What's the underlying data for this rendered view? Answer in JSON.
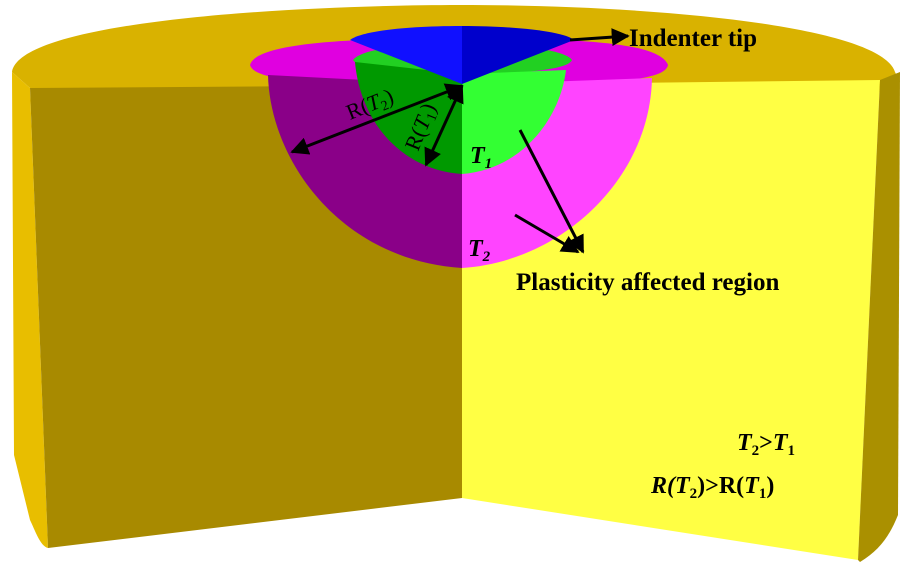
{
  "labels": {
    "indenter_tip": "Indenter tip",
    "plasticity_region": "Plasticity affected region",
    "t1": {
      "main": "T",
      "sub": "1"
    },
    "t2": {
      "main": "T",
      "sub": "2"
    },
    "radius_t2": {
      "prefix": "R(",
      "var": "T",
      "sub": "2",
      "suffix": ")"
    },
    "radius_t1": {
      "prefix": "R(",
      "var": "T",
      "sub": "1",
      "suffix": ")"
    },
    "relation_temperature": {
      "a": "T",
      "a_sub": "2",
      "op": ">",
      "b": "T",
      "b_sub": "1"
    },
    "relation_radius": {
      "a_pre": "R(",
      "a": "T",
      "a_sub": "2",
      "mid": ")>R(",
      "b": "T",
      "b_sub": "1",
      "suffix": ")"
    }
  },
  "colors": {
    "top_surface": "#D9B200",
    "left_face": "#A88A00",
    "right_face": "#FFFF44",
    "left_rim": "#E8BE00",
    "right_rim": "#AA9000",
    "outer_zone_dark": "#8A0088",
    "outer_zone_light": "#FF44FF",
    "outer_zone_top": "#E000E0",
    "inner_zone_dark": "#009900",
    "inner_zone_light": "#33FF33",
    "inner_zone_top": "#22D022",
    "indenter_left": "#1010FF",
    "indenter_right": "#0000CC"
  }
}
